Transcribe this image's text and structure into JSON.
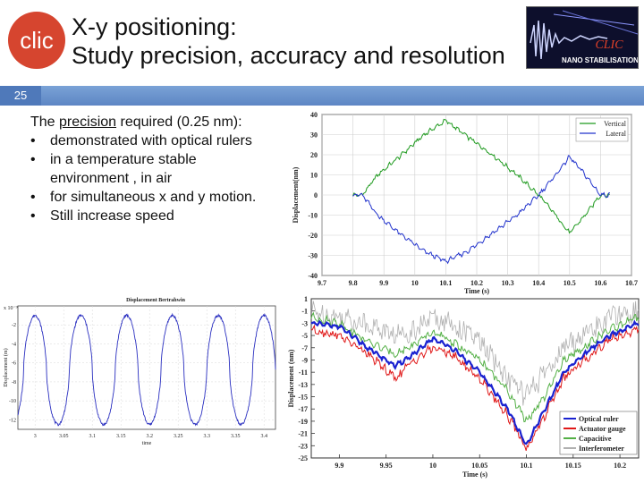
{
  "header": {
    "title_line1": "X-y positioning:",
    "title_line2": "Study precision, accuracy and resolution",
    "logo_text": "clic",
    "badge_text": "NANO STABILISATION",
    "badge_logo": "CLIC",
    "slide_number": "25"
  },
  "body": {
    "intro_pre": "The ",
    "intro_underlined": "precision",
    "intro_post": " required (0.25 nm):",
    "bullets": [
      "demonstrated with optical rulers",
      "in a temperature stable environment , in air",
      "for simultaneous x and y motion.",
      "Still increase speed"
    ],
    "bullet_char": "•"
  },
  "colors": {
    "band": "#6a92cc",
    "vertical": "#1f9a1f",
    "lateral": "#2233cc",
    "optical_ruler": "#1a22d0",
    "actuator_gauge": "#e01818",
    "capacitive": "#54b046",
    "interferometer": "#b0b0b0"
  },
  "chart_data": [
    {
      "type": "line",
      "title": "",
      "xlabel": "Time (s)",
      "ylabel": "Displacement(nm)",
      "xlim": [
        9.7,
        10.7
      ],
      "ylim": [
        -40,
        40
      ],
      "x_ticks": [
        "9.7",
        "9.8",
        "9.9",
        "10",
        "10.1",
        "10.2",
        "10.3",
        "10.4",
        "10.5",
        "10.6",
        "10.7"
      ],
      "y_ticks": [
        "40",
        "30",
        "20",
        "10",
        "0",
        "-10",
        "-20",
        "-30",
        "-40"
      ],
      "grid": true,
      "legend": "top-right",
      "series": [
        {
          "name": "Vertical",
          "x": [
            9.8,
            9.83,
            9.88,
            9.95,
            10.03,
            10.1,
            10.17,
            10.25,
            10.33,
            10.4,
            10.45,
            10.5,
            10.55,
            10.6,
            10.63
          ],
          "y": [
            0,
            0,
            10,
            19,
            30,
            37,
            29,
            20,
            10,
            0,
            -9,
            -19,
            -10,
            0,
            0
          ]
        },
        {
          "name": "Lateral",
          "x": [
            9.8,
            9.83,
            9.88,
            9.95,
            10.03,
            10.1,
            10.17,
            10.25,
            10.33,
            10.4,
            10.45,
            10.5,
            10.55,
            10.6,
            10.63
          ],
          "y": [
            0,
            0,
            -10,
            -19,
            -28,
            -33,
            -28,
            -19,
            -10,
            0,
            9,
            19,
            10,
            0,
            0
          ]
        }
      ]
    },
    {
      "type": "line",
      "title": "Displacement Bertrahwin",
      "xlabel": "time",
      "ylabel": "Displacement (m)",
      "y_exponent": "x 10⁻⁹",
      "x_ticks": [
        "3",
        "3.05",
        "3.1",
        "3.15",
        "3.2",
        "3.25",
        "3.3",
        "3.35",
        "3.4"
      ],
      "y_ticks": [
        "-2",
        "-4",
        "-6",
        "-8",
        "-10",
        "-12"
      ],
      "xlim": [
        2.97,
        3.42
      ],
      "ylim": [
        -13,
        0
      ],
      "grid": true,
      "series": [
        {
          "name": "",
          "period": 0.08,
          "phase": 3.0,
          "y_max": -1,
          "y_min": -12.5
        }
      ]
    },
    {
      "type": "line",
      "title": "",
      "xlabel": "Time (s)",
      "ylabel": "Displacement (nm)",
      "xlim": [
        9.87,
        10.22
      ],
      "ylim": [
        -25,
        1
      ],
      "x_ticks": [
        "9.9",
        "9.95",
        "10",
        "10.05",
        "10.1",
        "10.15",
        "10.2"
      ],
      "y_ticks": [
        "1",
        "-1",
        "-3",
        "-5",
        "-7",
        "-9",
        "-11",
        "-13",
        "-15",
        "-17",
        "-19",
        "-21",
        "-23",
        "-25"
      ],
      "grid": false,
      "legend": "bottom-right",
      "series": [
        {
          "name": "Optical ruler",
          "x": [
            9.87,
            9.9,
            9.93,
            9.96,
            9.98,
            10.0,
            10.02,
            10.05,
            10.08,
            10.1,
            10.12,
            10.14,
            10.17,
            10.19,
            10.22
          ],
          "y": [
            -3,
            -3.5,
            -7,
            -10,
            -8,
            -5.5,
            -7,
            -11,
            -17,
            -23,
            -17,
            -11,
            -7,
            -5,
            -3
          ]
        },
        {
          "name": "Actuator gauge",
          "x": [
            9.87,
            9.9,
            9.93,
            9.96,
            9.98,
            10.0,
            10.02,
            10.05,
            10.08,
            10.1,
            10.12,
            10.14,
            10.17,
            10.19,
            10.22
          ],
          "y": [
            -4,
            -5,
            -8,
            -12,
            -9,
            -7,
            -8,
            -12,
            -18,
            -23.5,
            -18,
            -12,
            -8,
            -5.5,
            -4
          ]
        },
        {
          "name": "Capacitive",
          "x": [
            9.87,
            9.9,
            9.93,
            9.96,
            9.98,
            10.0,
            10.02,
            10.05,
            10.08,
            10.1,
            10.12,
            10.14,
            10.17,
            10.19,
            10.22
          ],
          "y": [
            -2,
            -3,
            -6,
            -8,
            -6.5,
            -4.5,
            -6,
            -9,
            -14,
            -19,
            -15,
            -9,
            -6,
            -4,
            -2
          ]
        },
        {
          "name": "Interferometer",
          "x": [
            9.87,
            9.9,
            9.93,
            9.96,
            9.98,
            10.0,
            10.02,
            10.05,
            10.08,
            10.1,
            10.12,
            10.14,
            10.17,
            10.19,
            10.22
          ],
          "y": [
            -1,
            -2,
            -3,
            -5,
            -4,
            -2,
            -3,
            -6,
            -12,
            -15,
            -11,
            -7,
            -4,
            -2,
            -1
          ]
        }
      ]
    }
  ]
}
